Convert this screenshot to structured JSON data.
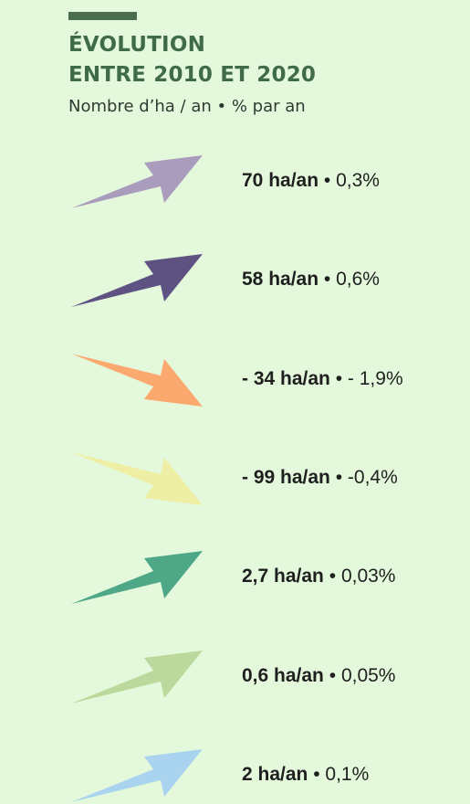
{
  "header": {
    "title_line1": "ÉVOLUTION",
    "title_line2": "ENTRE 2010 ET 2020",
    "subtitle": "Nombre d’ha / an • % par an"
  },
  "separator": "•",
  "items": [
    {
      "amount": "70 ha/an",
      "rate": "0,3%",
      "direction": "up",
      "color": "#a99cbd"
    },
    {
      "amount": "58 ha/an",
      "rate": "0,6%",
      "direction": "up",
      "color": "#5e5283"
    },
    {
      "amount": "- 34 ha/an",
      "rate": "- 1,9%",
      "direction": "down",
      "color": "#fba96e"
    },
    {
      "amount": "- 99 ha/an",
      "rate": "-0,4%",
      "direction": "down",
      "color": "#eeefa4"
    },
    {
      "amount": "2,7 ha/an",
      "rate": "0,03%",
      "direction": "up",
      "color": "#4ea887"
    },
    {
      "amount": "0,6 ha/an",
      "rate": "0,05%",
      "direction": "up",
      "color": "#bbd99c"
    },
    {
      "amount": "2 ha/an",
      "rate": "0,1%",
      "direction": "up",
      "color": "#aad3ef"
    }
  ]
}
